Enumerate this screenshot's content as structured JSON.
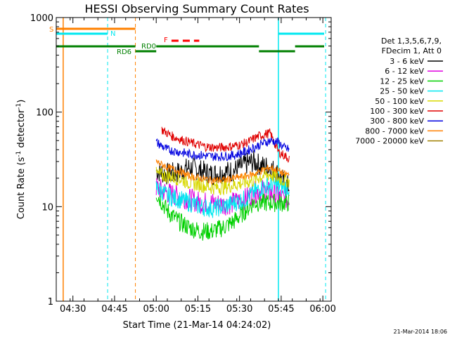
{
  "chart_data": {
    "type": "line",
    "title": "HESSI Observing Summary Count Rates",
    "xlabel": "Start Time (21-Mar-14 04:24:02)",
    "ylabel_main": "Count Rate (s",
    "ylabel_sup1": "-1",
    "ylabel_mid": " detector",
    "ylabel_sup2": "-1",
    "ylabel_end": ")",
    "yscale": "log",
    "ylim": [
      1,
      1000
    ],
    "xlim_minutes": [
      0,
      99
    ],
    "x_tick_labels": [
      "04:30",
      "04:45",
      "05:00",
      "05:15",
      "05:30",
      "05:45",
      "06:00"
    ],
    "x_tick_minutes": [
      6,
      21,
      36,
      51,
      66,
      81,
      96
    ],
    "y_tick_labels": [
      "1",
      "10",
      "100",
      "1000"
    ],
    "y_tick_values": [
      1,
      10,
      100,
      1000
    ],
    "legend": {
      "header": [
        "Det 1,3,5,6,7,9,",
        "FDecim 1, Att 0"
      ],
      "placement": "right"
    },
    "series": [
      {
        "name": "3 - 6 keV",
        "color": "#000000",
        "x": [
          36,
          40,
          44,
          48,
          52,
          56,
          60,
          64,
          68,
          71,
          74,
          77,
          80,
          82,
          84
        ],
        "y": [
          24,
          22,
          23,
          26,
          24,
          22,
          23,
          24,
          28,
          30,
          27,
          26,
          22,
          18,
          16
        ],
        "noise": 0.12
      },
      {
        "name": "6 - 12 keV",
        "color": "#e000e0",
        "x": [
          36,
          40,
          44,
          48,
          52,
          56,
          60,
          64,
          68,
          71,
          74,
          77,
          80,
          82,
          84
        ],
        "y": [
          16,
          14,
          13,
          12,
          11,
          11,
          10.5,
          11,
          12,
          14,
          15,
          14,
          13,
          12,
          12
        ],
        "noise": 0.12
      },
      {
        "name": "12 - 25 keV",
        "color": "#00d000",
        "x": [
          36,
          40,
          44,
          48,
          52,
          56,
          60,
          64,
          68,
          71,
          74,
          77,
          80,
          82,
          84
        ],
        "y": [
          14,
          9,
          7,
          6,
          5.5,
          5.5,
          6,
          7,
          9,
          11,
          11,
          11,
          11,
          11,
          11
        ],
        "noise": 0.1
      },
      {
        "name": "25 - 50 keV",
        "color": "#00e8f0",
        "x": [
          36,
          40,
          44,
          48,
          52,
          56,
          60,
          64,
          68,
          71,
          74,
          77,
          80,
          82,
          84
        ],
        "y": [
          16,
          13,
          12,
          11,
          10,
          9.5,
          10,
          11,
          12,
          14,
          16,
          17,
          17,
          16,
          16
        ],
        "noise": 0.1
      },
      {
        "name": "50 - 100 keV",
        "color": "#d8d800",
        "x": [
          36,
          40,
          44,
          48,
          52,
          56,
          60,
          64,
          68,
          71,
          74,
          77,
          80,
          82,
          84
        ],
        "y": [
          22,
          21,
          20,
          18,
          17,
          16,
          16,
          17,
          18,
          19,
          21,
          22,
          20,
          19,
          19
        ],
        "noise": 0.08
      },
      {
        "name": "100 - 300 keV",
        "color": "#e00000",
        "x": [
          38,
          42,
          46,
          50,
          54,
          58,
          62,
          66,
          69,
          71,
          73,
          75,
          77,
          80,
          84
        ],
        "y": [
          65,
          55,
          50,
          46,
          43,
          42,
          43,
          45,
          48,
          52,
          56,
          58,
          60,
          38,
          32
        ],
        "noise": 0.05
      },
      {
        "name": "300 - 800 keV",
        "color": "#0000e0",
        "x": [
          36,
          40,
          44,
          48,
          52,
          56,
          60,
          64,
          68,
          71,
          74,
          77,
          80,
          82,
          84
        ],
        "y": [
          48,
          40,
          38,
          36,
          35,
          34,
          34,
          35,
          38,
          42,
          46,
          50,
          48,
          42,
          40
        ],
        "noise": 0.05
      },
      {
        "name": "800 - 7000 keV",
        "color": "#ff8000",
        "x": [
          36,
          40,
          44,
          48,
          52,
          56,
          60,
          64,
          68,
          71,
          74,
          77,
          80,
          82,
          84
        ],
        "y": [
          30,
          26,
          24,
          21,
          20,
          19,
          19,
          20,
          21,
          22,
          24,
          26,
          24,
          22,
          22
        ],
        "noise": 0.04
      },
      {
        "name": "7000 - 20000 keV",
        "color": "#a08000",
        "x": [],
        "y": [],
        "noise": 0
      }
    ],
    "annotations": [
      {
        "text": "S",
        "color": "#ff8000"
      },
      {
        "text": "N",
        "color": "#00e8f0"
      },
      {
        "text": "F",
        "color": "#ff0000"
      },
      {
        "text": "RD0",
        "color": "#008000"
      },
      {
        "text": "RD6",
        "color": "#008000"
      }
    ],
    "footer_stamp": "21-Mar-2014 18:06"
  }
}
